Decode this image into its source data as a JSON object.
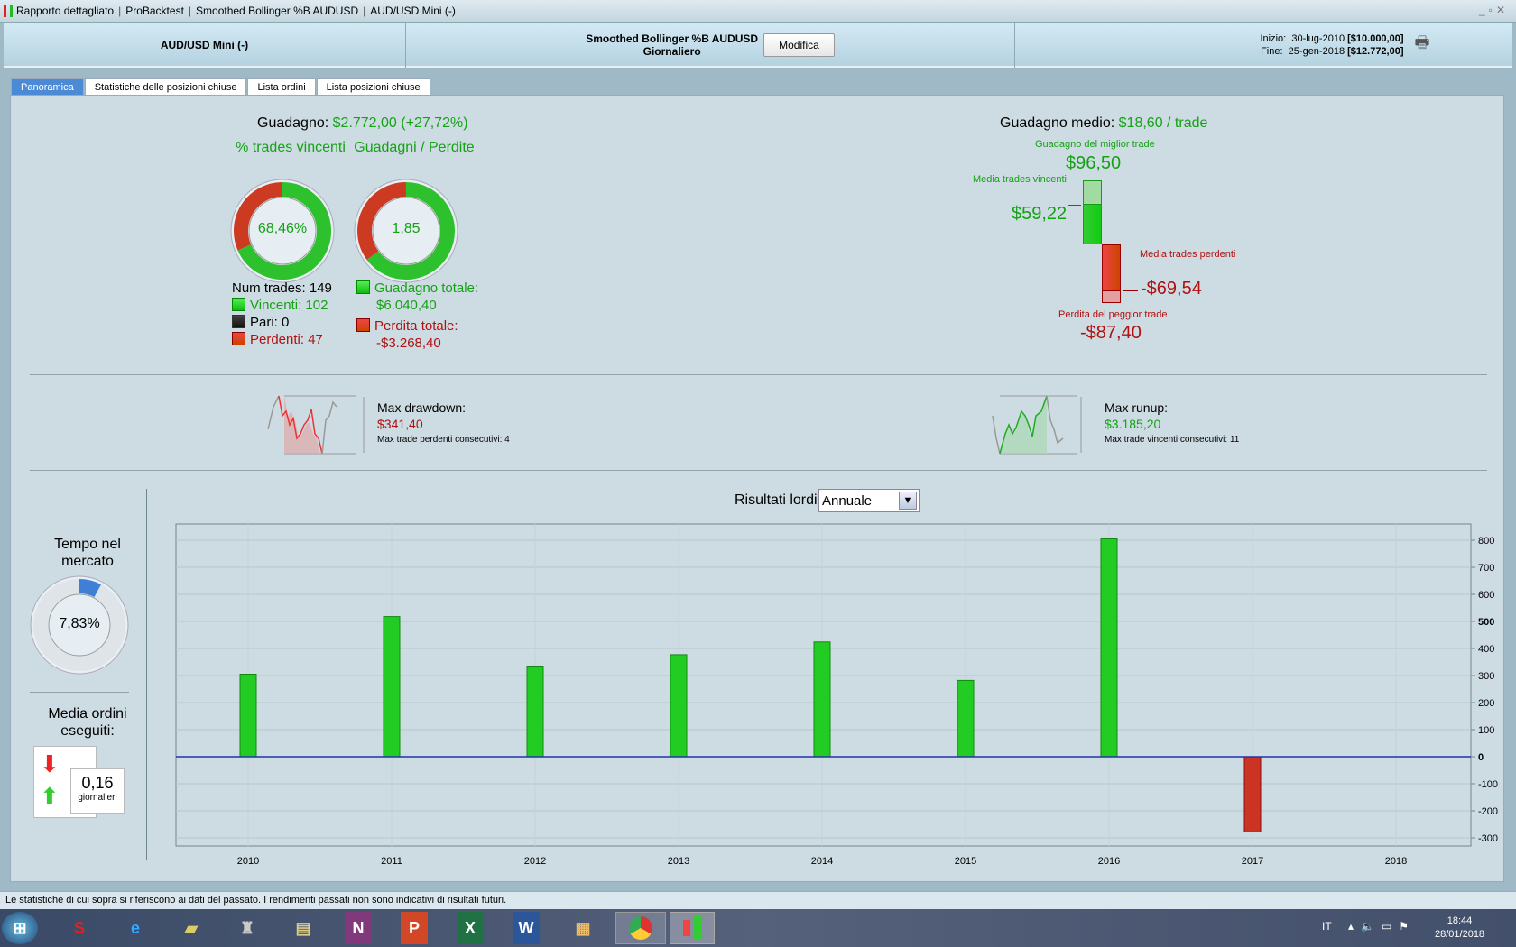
{
  "window": {
    "title_parts": [
      "Rapporto dettagliato",
      "ProBacktest",
      "Smoothed Bollinger %B AUDUSD",
      "AUD/USD Mini (-)"
    ]
  },
  "header": {
    "instrument": "AUD/USD Mini (-)",
    "system": "Smoothed Bollinger %B AUDUSD",
    "timeframe": "Giornaliero",
    "modify_label": "Modifica",
    "start_label": "Inizio:",
    "start_date": "30-lug-2010",
    "start_capital": "[$10.000,00]",
    "end_label": "Fine:",
    "end_date": "25-gen-2018",
    "end_capital": "[$12.772,00]"
  },
  "tabs": [
    {
      "label": "Panoramica",
      "active": true
    },
    {
      "label": "Statistiche delle posizioni chiuse"
    },
    {
      "label": "Lista ordini"
    },
    {
      "label": "Lista posizioni chiuse"
    }
  ],
  "summary": {
    "gain_label": "Guadagno:",
    "gain_value": "$2.772,00 (+27,72%)",
    "win_pct_title": "% trades vincenti",
    "win_pct_value": "68,46%",
    "win_pct": 68.46,
    "ratio_title": "Guadagni / Perdite",
    "ratio_value": "1,85",
    "ratio_win_fraction": 0.649,
    "num_trades": "Num trades: 149",
    "winners": "Vincenti: 102",
    "even": "Pari: 0",
    "losers": "Perdenti: 47",
    "total_gain_label": "Guadagno totale:",
    "total_gain": "$6.040,40",
    "total_loss_label": "Perdita totale:",
    "total_loss": "-$3.268,40"
  },
  "average": {
    "label": "Guadagno medio:",
    "value": "$18,60 / trade",
    "best_label": "Guadagno del miglior trade",
    "best_value": "$96,50",
    "avg_win_label": "Media trades vincenti",
    "avg_win_value": "$59,22",
    "avg_loss_label": "Media trades perdenti",
    "avg_loss_value": "-$69,54",
    "worst_label": "Perdita del peggior trade",
    "worst_value": "-$87,40"
  },
  "drawdown": {
    "label": "Max drawdown:",
    "value": "$341,40",
    "consecutive": "Max trade perdenti consecutivi:  4"
  },
  "runup": {
    "label": "Max runup:",
    "value": "$3.185,20",
    "consecutive": "Max trade vincenti consecutivi: 11"
  },
  "market": {
    "title": "Tempo nel mercato",
    "value": "7,83%",
    "pct": 7.83,
    "orders_title": "Media ordini eseguiti:",
    "orders_value": "0,16",
    "orders_unit": "giornalieri"
  },
  "results": {
    "label": "Risultati lordi",
    "period": "Annuale"
  },
  "chart_data": {
    "type": "bar",
    "title": "Risultati lordi",
    "categories": [
      "2010",
      "2011",
      "2012",
      "2013",
      "2014",
      "2015",
      "2016",
      "2017",
      "2018"
    ],
    "values": [
      305,
      518,
      335,
      377,
      424,
      282,
      805,
      -278,
      0
    ],
    "ylim": [
      -330,
      860
    ],
    "yticks": [
      800,
      700,
      600,
      500,
      400,
      300,
      200,
      100,
      0,
      -100,
      -200,
      -300
    ],
    "grid": true,
    "positive_color": "#22cc22",
    "negative_color": "#cc3322"
  },
  "status": "Le statistiche di cui sopra si riferiscono ai dati del passato. I rendimenti passati non sono indicativi di risultati futuri.",
  "taskbar": {
    "lang": "IT",
    "time": "18:44",
    "date": "28/01/2018"
  }
}
